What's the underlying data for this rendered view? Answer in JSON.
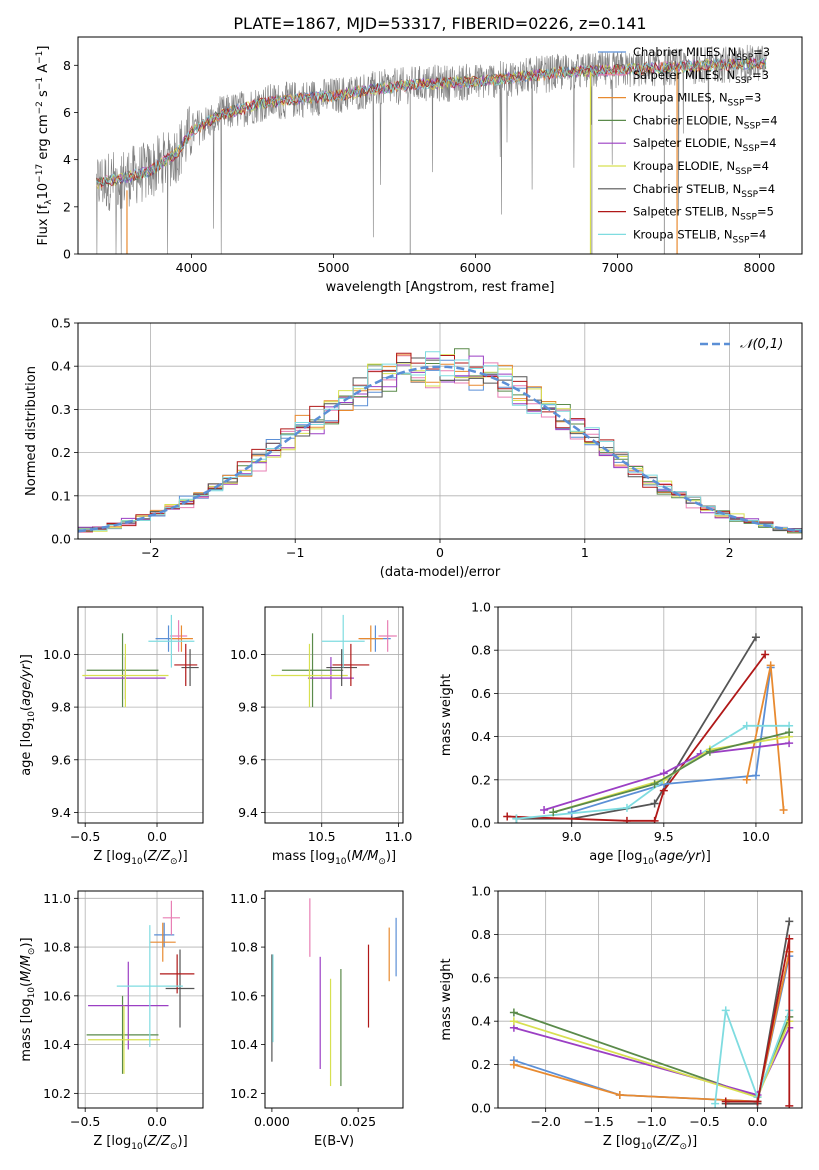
{
  "figure": {
    "title": "PLATE=1867, MJD=53317, FIBERID=0226, z=0.141"
  },
  "colors": {
    "grid": "#b0b0b0",
    "normal_curve": "#5b8fd6",
    "model_palette": [
      "#5b8fd6",
      "#e87fb4",
      "#e88a30",
      "#5a8a4a",
      "#9b3fc4",
      "#d8e050",
      "#555555",
      "#b01818",
      "#7fdce0"
    ]
  },
  "legend": {
    "models": [
      {
        "label": "Chabrier MILES, N_SSP=3",
        "color": "#5b8fd6"
      },
      {
        "label": "Salpeter MILES, N_SSP=3",
        "color": "#e87fb4"
      },
      {
        "label": "Kroupa MILES, N_SSP=3",
        "color": "#e88a30"
      },
      {
        "label": "Chabrier ELODIE, N_SSP=4",
        "color": "#5a8a4a"
      },
      {
        "label": "Salpeter ELODIE, N_SSP=4",
        "color": "#9b3fc4"
      },
      {
        "label": "Kroupa ELODIE, N_SSP=4",
        "color": "#d8e050"
      },
      {
        "label": "Chabrier STELIB, N_SSP=4",
        "color": "#555555"
      },
      {
        "label": "Salpeter STELIB, N_SSP=5",
        "color": "#b01818"
      },
      {
        "label": "Kroupa STELIB, N_SSP=4",
        "color": "#7fdce0"
      }
    ]
  },
  "chart_data": [
    {
      "id": "spectrum",
      "type": "line",
      "xlabel": "wavelength [Angstrom, rest frame]",
      "ylabel": "Flux [f_λ 10^-17 erg cm^-2 s^-1 A^-1]",
      "xlim": [
        3200,
        8300
      ],
      "ylim": [
        0,
        9.2
      ],
      "xticks": [
        4000,
        5000,
        6000,
        7000,
        8000
      ],
      "yticks": [
        0,
        2,
        4,
        6,
        8
      ],
      "grid": false,
      "legend_position": "top-right",
      "data_continuum": {
        "x": [
          3330,
          3500,
          3700,
          3900,
          4000,
          4200,
          4500,
          4800,
          5000,
          5300,
          5600,
          6000,
          6300,
          6600,
          7000,
          7300,
          7600,
          8050
        ],
        "y": [
          3.0,
          3.2,
          3.5,
          4.3,
          5.2,
          5.9,
          6.4,
          6.6,
          6.7,
          7.0,
          7.2,
          7.3,
          7.5,
          7.7,
          7.8,
          7.9,
          8.0,
          8.1
        ]
      }
    },
    {
      "id": "residuals",
      "type": "line",
      "xlabel": "(data-model)/error",
      "ylabel": "Normed distribution",
      "xlim": [
        -2.5,
        2.5
      ],
      "ylim": [
        0,
        0.5
      ],
      "xticks": [
        -2,
        -1,
        0,
        1,
        2
      ],
      "yticks": [
        0.0,
        0.1,
        0.2,
        0.3,
        0.4,
        0.5
      ],
      "grid": true,
      "legend_position": "top-right",
      "normal_label": "𝒩(0,1)",
      "hist_bin_width": 0.1
    },
    {
      "id": "age_vs_Z",
      "type": "scatter",
      "xlabel": "Z [log10(Z/Z⊙)]",
      "ylabel": "age [log10(age/yr)]",
      "xlim": [
        -0.55,
        0.32
      ],
      "ylim": [
        9.36,
        10.18
      ],
      "xticks": [
        -0.5,
        0.0
      ],
      "yticks": [
        9.4,
        9.6,
        9.8,
        10.0
      ],
      "grid": true,
      "points": [
        {
          "x": 0.08,
          "y": 10.06,
          "xe": 0.09,
          "ye": 0.05,
          "c": "#5b8fd6"
        },
        {
          "x": 0.15,
          "y": 10.07,
          "xe": 0.06,
          "ye": 0.06,
          "c": "#e87fb4"
        },
        {
          "x": 0.17,
          "y": 10.06,
          "xe": 0.08,
          "ye": 0.05,
          "c": "#e88a30"
        },
        {
          "x": -0.24,
          "y": 9.94,
          "xe": 0.25,
          "ye": 0.14,
          "c": "#5a8a4a"
        },
        {
          "x": -0.22,
          "y": 9.91,
          "xe": 0.28,
          "ye": 0.08,
          "c": "#9b3fc4"
        },
        {
          "x": -0.22,
          "y": 9.92,
          "xe": 0.3,
          "ye": 0.12,
          "c": "#d8e050"
        },
        {
          "x": 0.23,
          "y": 9.95,
          "xe": 0.06,
          "ye": 0.07,
          "c": "#555555"
        },
        {
          "x": 0.2,
          "y": 9.96,
          "xe": 0.08,
          "ye": 0.08,
          "c": "#b01818"
        },
        {
          "x": 0.1,
          "y": 10.05,
          "xe": 0.16,
          "ye": 0.1,
          "c": "#7fdce0"
        }
      ]
    },
    {
      "id": "age_vs_mass",
      "type": "scatter",
      "xlabel": "mass [log10(M/M⊙)]",
      "ylabel": "",
      "xlim": [
        10.13,
        11.03
      ],
      "ylim": [
        9.36,
        10.18
      ],
      "xticks": [
        10.5,
        11.0
      ],
      "yticks": [
        9.4,
        9.6,
        9.8,
        10.0
      ],
      "grid": true,
      "points": [
        {
          "x": 10.85,
          "y": 10.06,
          "xe": 0.1,
          "ye": 0.05,
          "c": "#5b8fd6"
        },
        {
          "x": 10.93,
          "y": 10.07,
          "xe": 0.06,
          "ye": 0.06,
          "c": "#e87fb4"
        },
        {
          "x": 10.82,
          "y": 10.06,
          "xe": 0.08,
          "ye": 0.05,
          "c": "#e88a30"
        },
        {
          "x": 10.44,
          "y": 9.94,
          "xe": 0.2,
          "ye": 0.14,
          "c": "#5a8a4a"
        },
        {
          "x": 10.56,
          "y": 9.91,
          "xe": 0.15,
          "ye": 0.08,
          "c": "#9b3fc4"
        },
        {
          "x": 10.42,
          "y": 9.92,
          "xe": 0.25,
          "ye": 0.12,
          "c": "#d8e050"
        },
        {
          "x": 10.63,
          "y": 9.95,
          "xe": 0.1,
          "ye": 0.07,
          "c": "#555555"
        },
        {
          "x": 10.69,
          "y": 9.96,
          "xe": 0.12,
          "ye": 0.08,
          "c": "#b01818"
        },
        {
          "x": 10.64,
          "y": 10.05,
          "xe": 0.14,
          "ye": 0.1,
          "c": "#7fdce0"
        }
      ]
    },
    {
      "id": "mass_weight_vs_age",
      "type": "line",
      "xlabel": "age [log10(age/yr)]",
      "ylabel": "mass weight",
      "xlim": [
        8.6,
        10.25
      ],
      "ylim": [
        0,
        1.0
      ],
      "xticks": [
        9.0,
        9.5,
        10.0
      ],
      "yticks": [
        0.0,
        0.2,
        0.4,
        0.6,
        0.8,
        1.0
      ],
      "grid": true,
      "series": [
        {
          "c": "#555555",
          "x": [
            8.7,
            9.0,
            9.45,
            10.0
          ],
          "y": [
            0.02,
            0.02,
            0.09,
            0.86
          ]
        },
        {
          "c": "#b01818",
          "x": [
            8.65,
            9.3,
            9.45,
            9.5,
            10.05
          ],
          "y": [
            0.03,
            0.01,
            0.01,
            0.15,
            0.78
          ]
        },
        {
          "c": "#5b8fd6",
          "x": [
            9.0,
            9.5,
            10.0,
            10.08
          ],
          "y": [
            0.05,
            0.18,
            0.22,
            0.72
          ]
        },
        {
          "c": "#e88a30",
          "x": [
            9.95,
            10.08,
            10.15
          ],
          "y": [
            0.2,
            0.73,
            0.06
          ]
        },
        {
          "c": "#7fdce0",
          "x": [
            8.7,
            9.3,
            9.7,
            9.95,
            10.18
          ],
          "y": [
            0.02,
            0.07,
            0.32,
            0.45,
            0.45
          ]
        },
        {
          "c": "#9b3fc4",
          "x": [
            8.85,
            9.5,
            9.7,
            10.18
          ],
          "y": [
            0.06,
            0.23,
            0.32,
            0.37
          ]
        },
        {
          "c": "#d8e050",
          "x": [
            8.9,
            9.5,
            9.75,
            10.18
          ],
          "y": [
            0.05,
            0.2,
            0.34,
            0.4
          ]
        },
        {
          "c": "#5a8a4a",
          "x": [
            8.9,
            9.45,
            9.75,
            10.18
          ],
          "y": [
            0.05,
            0.18,
            0.33,
            0.42
          ]
        }
      ]
    },
    {
      "id": "mass_vs_Z",
      "type": "scatter",
      "xlabel": "Z [log10(Z/Z⊙)]",
      "ylabel": "mass [log10(M/M⊙)]",
      "xlim": [
        -0.55,
        0.32
      ],
      "ylim": [
        10.14,
        11.03
      ],
      "xticks": [
        -0.5,
        0.0
      ],
      "yticks": [
        10.2,
        10.4,
        10.6,
        10.8,
        11.0
      ],
      "grid": true,
      "points": [
        {
          "x": 0.05,
          "y": 10.85,
          "xe": 0.07,
          "ye": 0.05,
          "c": "#5b8fd6"
        },
        {
          "x": 0.1,
          "y": 10.92,
          "xe": 0.06,
          "ye": 0.07,
          "c": "#e87fb4"
        },
        {
          "x": 0.04,
          "y": 10.82,
          "xe": 0.09,
          "ye": 0.08,
          "c": "#e88a30"
        },
        {
          "x": -0.24,
          "y": 10.44,
          "xe": 0.25,
          "ye": 0.16,
          "c": "#5a8a4a"
        },
        {
          "x": -0.2,
          "y": 10.56,
          "xe": 0.28,
          "ye": 0.18,
          "c": "#9b3fc4"
        },
        {
          "x": -0.23,
          "y": 10.42,
          "xe": 0.25,
          "ye": 0.14,
          "c": "#d8e050"
        },
        {
          "x": 0.16,
          "y": 10.63,
          "xe": 0.1,
          "ye": 0.16,
          "c": "#555555"
        },
        {
          "x": 0.14,
          "y": 10.69,
          "xe": 0.12,
          "ye": 0.08,
          "c": "#b01818"
        },
        {
          "x": -0.05,
          "y": 10.64,
          "xe": 0.23,
          "ye": 0.25,
          "c": "#7fdce0"
        }
      ]
    },
    {
      "id": "mass_vs_EBV",
      "type": "scatter",
      "xlabel": "E(B-V)",
      "ylabel": "",
      "xlim": [
        -0.002,
        0.038
      ],
      "ylim": [
        10.14,
        11.03
      ],
      "xticks": [
        0.0,
        0.025
      ],
      "yticks": [
        10.2,
        10.4,
        10.6,
        10.8,
        11.0
      ],
      "grid": false,
      "points": [
        {
          "x": 0.036,
          "y": 10.8,
          "ye": 0.12,
          "c": "#5b8fd6"
        },
        {
          "x": 0.011,
          "y": 10.88,
          "ye": 0.12,
          "c": "#e87fb4"
        },
        {
          "x": 0.034,
          "y": 10.77,
          "ye": 0.11,
          "c": "#e88a30"
        },
        {
          "x": 0.02,
          "y": 10.47,
          "ye": 0.24,
          "c": "#5a8a4a"
        },
        {
          "x": 0.014,
          "y": 10.53,
          "ye": 0.23,
          "c": "#9b3fc4"
        },
        {
          "x": 0.017,
          "y": 10.45,
          "ye": 0.22,
          "c": "#d8e050"
        },
        {
          "x": 0.0,
          "y": 10.55,
          "ye": 0.22,
          "c": "#555555"
        },
        {
          "x": 0.028,
          "y": 10.64,
          "ye": 0.17,
          "c": "#b01818"
        },
        {
          "x": 0.0003,
          "y": 10.59,
          "ye": 0.18,
          "c": "#7fdce0"
        }
      ]
    },
    {
      "id": "mass_weight_vs_Z",
      "type": "line",
      "xlabel": "Z [log10(Z/Z⊙)]",
      "ylabel": "mass weight",
      "xlim": [
        -2.45,
        0.42
      ],
      "ylim": [
        0,
        1.0
      ],
      "xticks": [
        -2.0,
        -1.5,
        -1.0,
        -0.5,
        0.0
      ],
      "yticks": [
        0.0,
        0.2,
        0.4,
        0.6,
        0.8,
        1.0
      ],
      "grid": true,
      "series": [
        {
          "c": "#5b8fd6",
          "x": [
            -2.3,
            -1.3,
            0.0,
            0.3
          ],
          "y": [
            0.22,
            0.06,
            0.03,
            0.7
          ]
        },
        {
          "c": "#e88a30",
          "x": [
            -2.3,
            -1.3,
            0.0,
            0.3
          ],
          "y": [
            0.2,
            0.06,
            0.03,
            0.72
          ]
        },
        {
          "c": "#5a8a4a",
          "x": [
            -2.3,
            0.0,
            0.3
          ],
          "y": [
            0.44,
            0.05,
            0.42
          ]
        },
        {
          "c": "#9b3fc4",
          "x": [
            -2.3,
            0.0,
            0.3
          ],
          "y": [
            0.37,
            0.06,
            0.37
          ]
        },
        {
          "c": "#d8e050",
          "x": [
            -2.3,
            0.0,
            0.3
          ],
          "y": [
            0.4,
            0.05,
            0.4
          ]
        },
        {
          "c": "#7fdce0",
          "x": [
            -0.4,
            -0.3,
            0.0,
            0.3
          ],
          "y": [
            0.02,
            0.45,
            0.05,
            0.45
          ]
        },
        {
          "c": "#555555",
          "x": [
            -0.3,
            0.0,
            0.3
          ],
          "y": [
            0.02,
            0.02,
            0.86
          ]
        },
        {
          "c": "#b01818",
          "x": [
            -0.3,
            0.0,
            0.3,
            0.3
          ],
          "y": [
            0.03,
            0.03,
            0.78,
            0.01
          ]
        }
      ]
    }
  ]
}
